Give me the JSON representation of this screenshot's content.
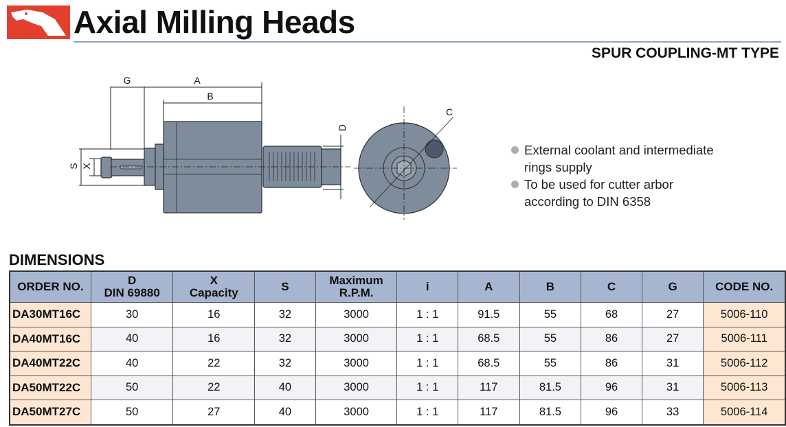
{
  "header": {
    "title": "Axial Milling Heads",
    "subtitle": "SPUR COUPLING-MT TYPE",
    "brand_color": "#e2402d"
  },
  "drawing": {
    "labels": {
      "G": "G",
      "A": "A",
      "B": "B",
      "D": "D",
      "S": "S",
      "X": "X",
      "C": "C"
    }
  },
  "features": [
    {
      "line1": "External coolant and intermediate",
      "line2": "rings supply"
    },
    {
      "line1": "To be used for cutter arbor",
      "line2": "according to DIN 6358"
    }
  ],
  "dimensions": {
    "title": "DIMENSIONS",
    "headers": [
      {
        "l1": "ORDER NO.",
        "l2": ""
      },
      {
        "l1": "D",
        "l2": "DIN 69880"
      },
      {
        "l1": "X",
        "l2": "Capacity"
      },
      {
        "l1": "S",
        "l2": ""
      },
      {
        "l1": "Maximum",
        "l2": "R.P.M."
      },
      {
        "l1": "i",
        "l2": ""
      },
      {
        "l1": "A",
        "l2": ""
      },
      {
        "l1": "B",
        "l2": ""
      },
      {
        "l1": "C",
        "l2": ""
      },
      {
        "l1": "G",
        "l2": ""
      },
      {
        "l1": "CODE NO.",
        "l2": ""
      }
    ],
    "rows": [
      [
        "DA30MT16C",
        "30",
        "16",
        "32",
        "3000",
        "1 : 1",
        "91.5",
        "55",
        "68",
        "27",
        "5006-110"
      ],
      [
        "DA40MT16C",
        "40",
        "16",
        "32",
        "3000",
        "1 : 1",
        "68.5",
        "55",
        "86",
        "27",
        "5006-111"
      ],
      [
        "DA40MT22C",
        "40",
        "22",
        "32",
        "3000",
        "1 : 1",
        "68.5",
        "55",
        "86",
        "31",
        "5006-112"
      ],
      [
        "DA50MT22C",
        "50",
        "22",
        "40",
        "3000",
        "1 : 1",
        "117",
        "81.5",
        "96",
        "31",
        "5006-113"
      ],
      [
        "DA50MT27C",
        "50",
        "27",
        "40",
        "3000",
        "1 : 1",
        "117",
        "81.5",
        "96",
        "33",
        "5006-114"
      ]
    ]
  }
}
